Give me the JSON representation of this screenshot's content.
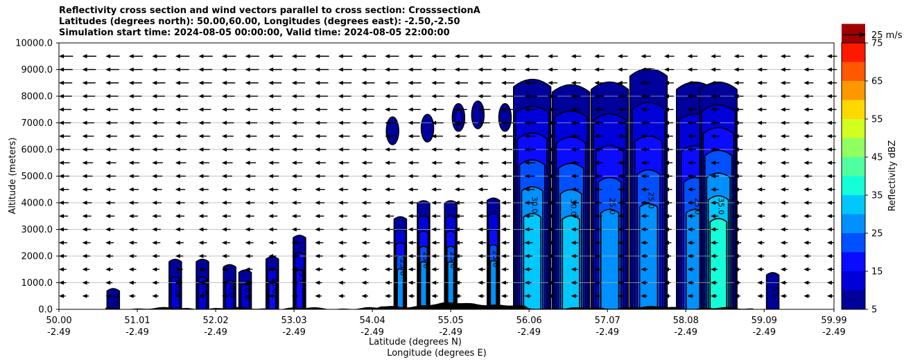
{
  "chart_data": {
    "type": "heatmap",
    "title_lines": [
      "Reflectivity cross section and wind vectors parallel to cross section: CrosssectionA",
      "Latitudes (degrees north): 50.00,60.00, Longitudes (degrees east): -2.50,-2.50",
      "Simulation start time: 2024-08-05 00:00:00, Valid time: 2024-08-05 22:00:00"
    ],
    "ylabel": "Altitude (meters)",
    "xlabel_lines": [
      "Latitude (degrees N)",
      "Longitude (degrees E)"
    ],
    "ylim": [
      0,
      10000
    ],
    "xlim": [
      50.0,
      59.99
    ],
    "y_ticks": [
      0,
      1000,
      2000,
      3000,
      4000,
      5000,
      6000,
      7000,
      8000,
      9000,
      10000
    ],
    "y_tick_labels": [
      "0.0",
      "1000.0",
      "2000.0",
      "3000.0",
      "4000.0",
      "5000.0",
      "6000.0",
      "7000.0",
      "8000.0",
      "9000.0",
      "10000.0"
    ],
    "x_ticks": [
      50.0,
      51.01,
      52.02,
      53.03,
      54.04,
      55.05,
      56.06,
      57.07,
      58.08,
      59.09,
      59.99
    ],
    "x_tick_labels_lat": [
      "50.00",
      "51.01",
      "52.02",
      "53.03",
      "54.04",
      "55.05",
      "56.06",
      "57.07",
      "58.08",
      "59.09",
      "59.99"
    ],
    "x_tick_labels_lon": [
      "-2.49",
      "-2.49",
      "-2.49",
      "-2.49",
      "-2.49",
      "-2.49",
      "-2.49",
      "-2.49",
      "-2.49",
      "-2.49",
      "-2.49"
    ],
    "grid": "horizontal",
    "colorbar": {
      "label": "Reflectivity dBZ",
      "min": 5,
      "max": 75,
      "step": 5,
      "tick_labels": [
        "5",
        "15",
        "25",
        "35",
        "45",
        "55",
        "65",
        "75"
      ],
      "colors": [
        "#00009a",
        "#0000d8",
        "#0b0bff",
        "#0050ff",
        "#0090ff",
        "#00c8ff",
        "#14ffd8",
        "#50ffa0",
        "#90ff60",
        "#d0ff20",
        "#ffd800",
        "#ff9800",
        "#ff5800",
        "#ff1800",
        "#a00000"
      ]
    },
    "reference_vector": {
      "label": "25 m/s",
      "value": 25
    },
    "wind_vector_direction": "toward decreasing latitude",
    "contour_labels": [
      "5.0",
      "10.0",
      "15.0",
      "20.0",
      "25.0",
      "30.0",
      "35.0"
    ],
    "cells": [
      {
        "lat": 50.7,
        "top": 800,
        "max_dbz": 10
      },
      {
        "lat": 51.5,
        "top": 1900,
        "max_dbz": 15
      },
      {
        "lat": 51.85,
        "top": 1900,
        "max_dbz": 15
      },
      {
        "lat": 52.2,
        "top": 1700,
        "max_dbz": 15
      },
      {
        "lat": 52.4,
        "top": 1500,
        "max_dbz": 15
      },
      {
        "lat": 52.75,
        "top": 2000,
        "max_dbz": 20
      },
      {
        "lat": 53.1,
        "top": 2800,
        "max_dbz": 20
      },
      {
        "lat": 54.4,
        "top": 3500,
        "max_dbz": 30
      },
      {
        "lat": 54.7,
        "top": 4100,
        "max_dbz": 30
      },
      {
        "lat": 55.05,
        "top": 4100,
        "max_dbz": 30
      },
      {
        "lat": 55.6,
        "top": 4200,
        "max_dbz": 30
      },
      {
        "lat": 56.1,
        "top": 8700,
        "max_dbz": 35
      },
      {
        "lat": 56.6,
        "top": 8500,
        "max_dbz": 35
      },
      {
        "lat": 57.1,
        "top": 8600,
        "max_dbz": 30
      },
      {
        "lat": 57.6,
        "top": 9100,
        "max_dbz": 30
      },
      {
        "lat": 58.2,
        "top": 8600,
        "max_dbz": 30
      },
      {
        "lat": 58.5,
        "top": 8600,
        "max_dbz": 40
      },
      {
        "lat": 59.2,
        "top": 1400,
        "max_dbz": 10
      }
    ],
    "anvil_fragments": [
      {
        "lat": 54.3,
        "altitude": 6700,
        "max_dbz": 10
      },
      {
        "lat": 54.75,
        "altitude": 6800,
        "max_dbz": 10
      },
      {
        "lat": 55.15,
        "altitude": 7200,
        "max_dbz": 15
      },
      {
        "lat": 55.4,
        "altitude": 7300,
        "max_dbz": 10
      },
      {
        "lat": 55.75,
        "altitude": 7200,
        "max_dbz": 10
      }
    ]
  }
}
